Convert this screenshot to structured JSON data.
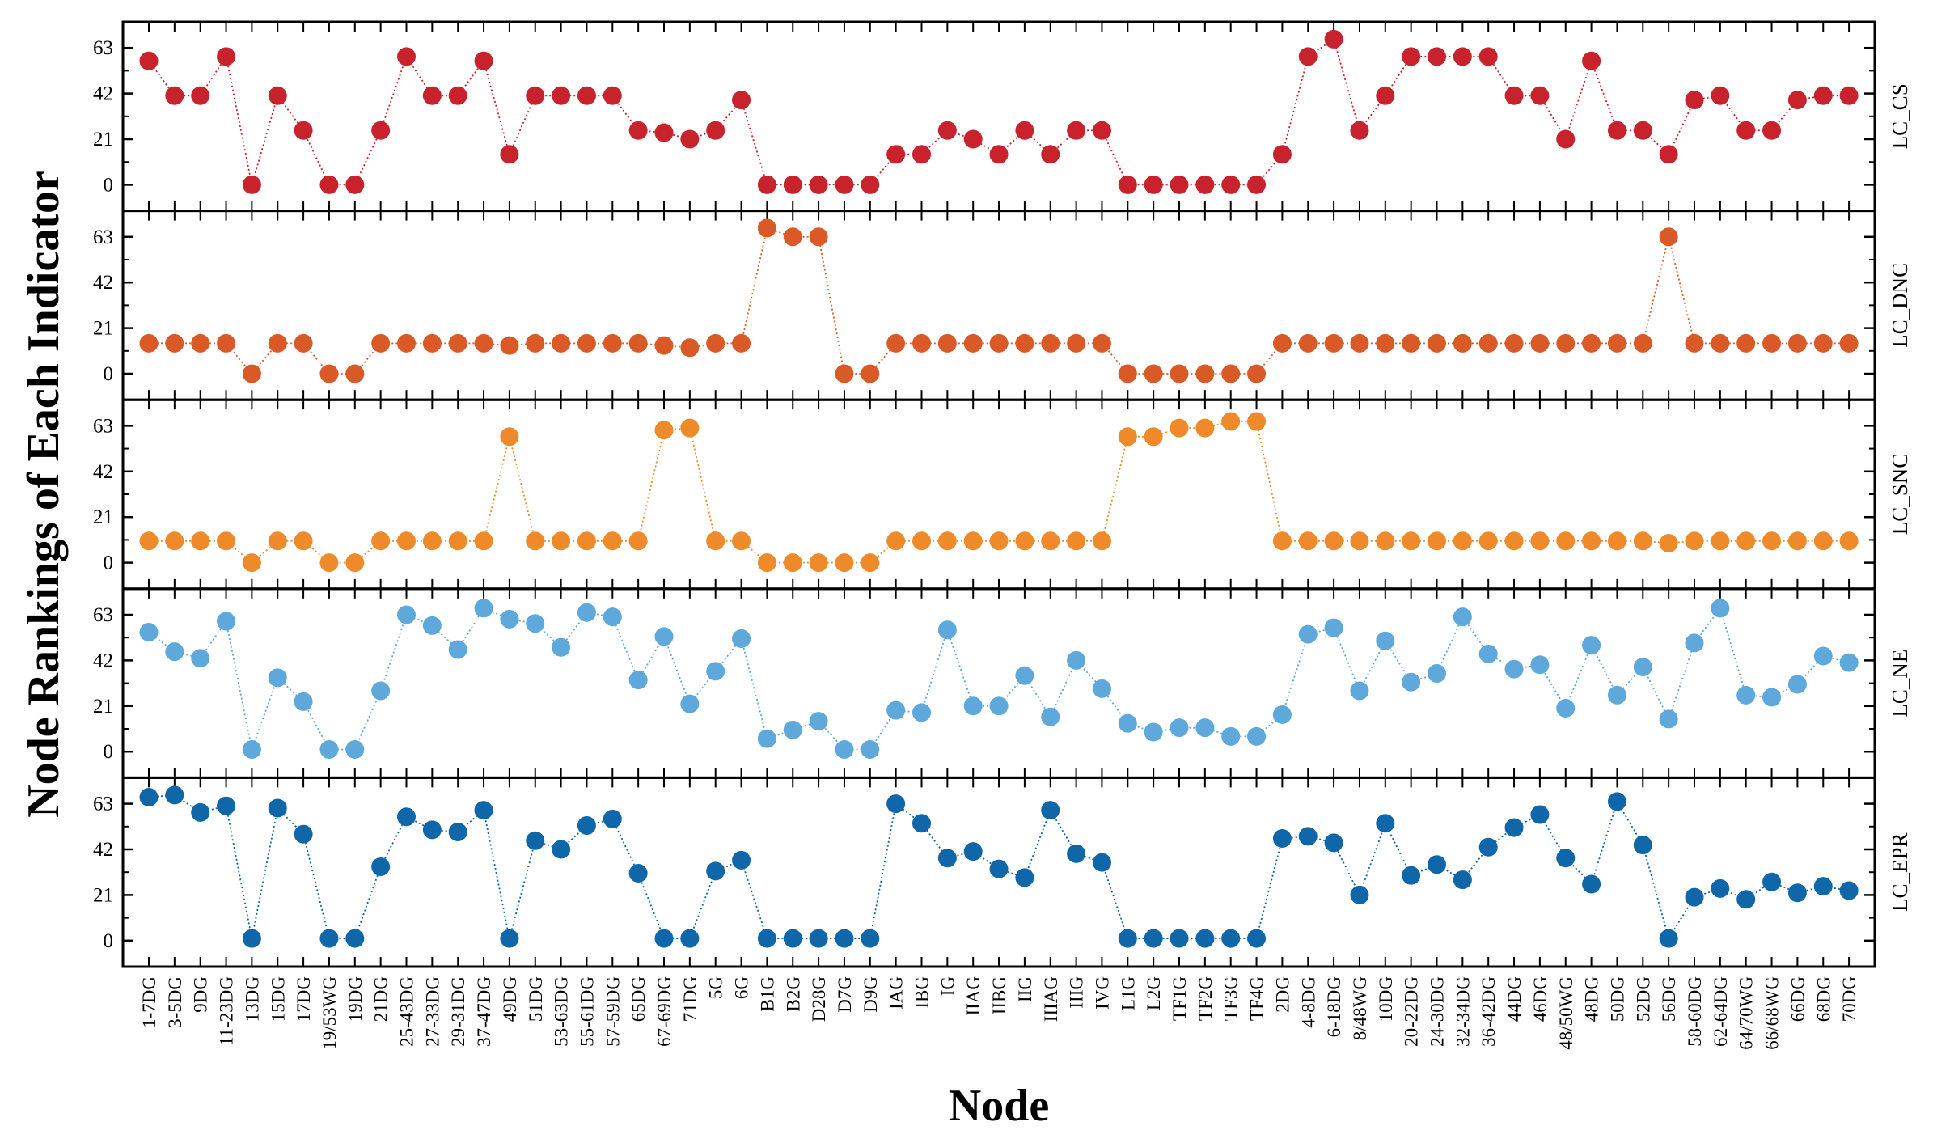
{
  "chart_data": {
    "type": "scatter",
    "title": "",
    "xlabel": "Node",
    "ylabel": "Node Rankings of Each Indicator",
    "ylim": [
      -9,
      72
    ],
    "yticks": [
      0,
      21,
      42,
      63
    ],
    "grid": false,
    "categories": [
      "1-7DG",
      "3-5DG",
      "9DG",
      "11-23DG",
      "13DG",
      "15DG",
      "17DG",
      "19/53WG",
      "19DG",
      "21DG",
      "25-43DG",
      "27-33DG",
      "29-31DG",
      "37-47DG",
      "49DG",
      "51DG",
      "53-63DG",
      "55-61DG",
      "57-59DG",
      "65DG",
      "67-69DG",
      "71DG",
      "5G",
      "6G",
      "B1G",
      "B2G",
      "D28G",
      "D7G",
      "D9G",
      "IAG",
      "IBG",
      "IG",
      "IIAG",
      "IIBG",
      "IIG",
      "IIIAG",
      "IIIG",
      "IVG",
      "L1G",
      "L2G",
      "TF1G",
      "TF2G",
      "TF3G",
      "TF4G",
      "2DG",
      "4-8DG",
      "6-18DG",
      "8/48WG",
      "10DG",
      "20-22DG",
      "24-30DG",
      "32-34DG",
      "36-42DG",
      "44DG",
      "46DG",
      "48/50WG",
      "48DG",
      "50DG",
      "52DG",
      "56DG",
      "58-60DG",
      "62-64DG",
      "64/70WG",
      "66/68WG",
      "66DG",
      "68DG",
      "70DG"
    ],
    "series": [
      {
        "name": "LC_CS",
        "color": "#c8232c",
        "values": [
          57,
          41,
          41,
          59,
          0,
          41,
          25,
          0,
          0,
          25,
          59,
          41,
          41,
          57,
          14,
          41,
          41,
          41,
          41,
          25,
          24,
          21,
          25,
          39,
          0,
          0,
          0,
          0,
          0,
          14,
          14,
          25,
          21,
          14,
          25,
          14,
          25,
          25,
          0,
          0,
          0,
          0,
          0,
          0,
          14,
          59,
          67,
          25,
          41,
          59,
          59,
          59,
          59,
          41,
          41,
          21,
          57,
          25,
          25,
          14,
          39,
          41,
          25,
          25,
          39,
          41,
          41
        ]
      },
      {
        "name": "LC_DNC",
        "color": "#d95a27",
        "values": [
          14,
          14,
          14,
          14,
          0,
          14,
          14,
          0,
          0,
          14,
          14,
          14,
          14,
          14,
          13,
          14,
          14,
          14,
          14,
          14,
          13,
          12,
          14,
          14,
          67,
          63,
          63,
          0,
          0,
          14,
          14,
          14,
          14,
          14,
          14,
          14,
          14,
          14,
          0,
          0,
          0,
          0,
          0,
          0,
          14,
          14,
          14,
          14,
          14,
          14,
          14,
          14,
          14,
          14,
          14,
          14,
          14,
          14,
          14,
          63,
          14,
          14,
          14,
          14,
          14,
          14,
          14
        ]
      },
      {
        "name": "LC_SNC",
        "color": "#ee8a2a",
        "values": [
          10,
          10,
          10,
          10,
          0,
          10,
          10,
          0,
          0,
          10,
          10,
          10,
          10,
          10,
          58,
          10,
          10,
          10,
          10,
          10,
          61,
          62,
          10,
          10,
          0,
          0,
          0,
          0,
          0,
          10,
          10,
          10,
          10,
          10,
          10,
          10,
          10,
          10,
          58,
          58,
          62,
          62,
          65,
          65,
          10,
          10,
          10,
          10,
          10,
          10,
          10,
          10,
          10,
          10,
          10,
          10,
          10,
          10,
          10,
          9,
          10,
          10,
          10,
          10,
          10,
          10,
          10
        ]
      },
      {
        "name": "LC_NE",
        "color": "#5ea8db",
        "values": [
          55,
          46,
          43,
          60,
          1,
          34,
          23,
          1,
          1,
          28,
          63,
          58,
          47,
          66,
          61,
          59,
          48,
          64,
          62,
          33,
          53,
          22,
          37,
          52,
          6,
          10,
          14,
          1,
          1,
          19,
          18,
          56,
          21,
          21,
          35,
          16,
          42,
          29,
          13,
          9,
          11,
          11,
          7,
          7,
          17,
          54,
          57,
          28,
          51,
          32,
          36,
          62,
          45,
          38,
          40,
          20,
          49,
          26,
          39,
          15,
          50,
          66,
          26,
          25,
          31,
          44,
          41
        ]
      },
      {
        "name": "LC_EPR",
        "color": "#0f66a8",
        "values": [
          66,
          67,
          59,
          62,
          1,
          61,
          49,
          1,
          1,
          34,
          57,
          51,
          50,
          60,
          1,
          46,
          42,
          53,
          56,
          31,
          1,
          1,
          32,
          37,
          1,
          1,
          1,
          1,
          1,
          63,
          54,
          38,
          41,
          33,
          29,
          60,
          40,
          36,
          1,
          1,
          1,
          1,
          1,
          1,
          47,
          48,
          45,
          21,
          54,
          30,
          35,
          28,
          43,
          52,
          58,
          38,
          26,
          64,
          44,
          1,
          20,
          24,
          19,
          27,
          22,
          25,
          23
        ]
      }
    ]
  }
}
